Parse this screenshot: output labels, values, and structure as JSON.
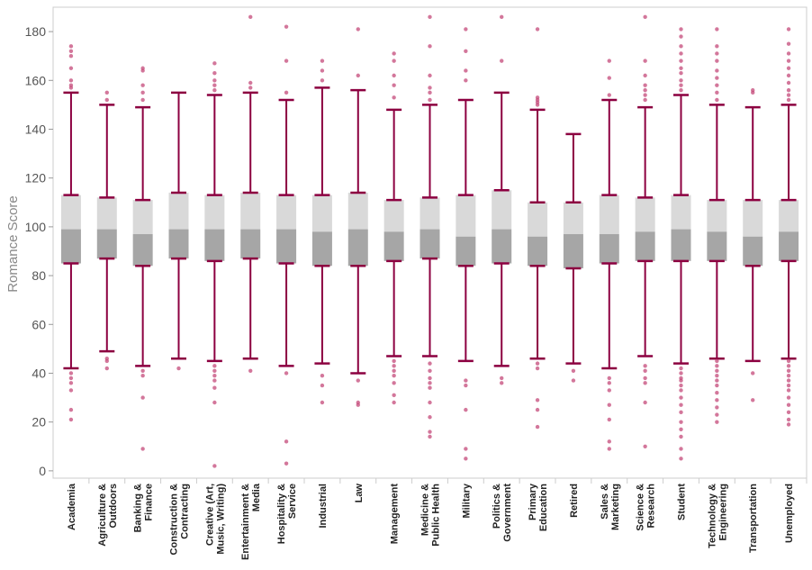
{
  "chart_data": {
    "type": "boxplot",
    "ylabel": "Romance Score",
    "ylim": [
      -3,
      190
    ],
    "yticks": [
      0,
      20,
      40,
      60,
      80,
      100,
      120,
      140,
      160,
      180
    ],
    "grid": false,
    "colors": {
      "whisker": "#8c0040",
      "outlier": "#c44a7a",
      "box_upper": "#d9d9d9",
      "box_lower": "#a6a6a6",
      "frame": "#cccccc"
    },
    "categories": [
      [
        "Academia"
      ],
      [
        "Agriculture &",
        "Outdoors"
      ],
      [
        "Banking &",
        "Finance"
      ],
      [
        "Construction &",
        "Contracting"
      ],
      [
        "Creative (Art,",
        "Music, Writing)"
      ],
      [
        "Entertainment &",
        "Media"
      ],
      [
        "Hospitality &",
        "Service"
      ],
      [
        "Industrial"
      ],
      [
        "Law"
      ],
      [
        "Management"
      ],
      [
        "Medicine &",
        "Public Health"
      ],
      [
        "Military"
      ],
      [
        "Politics &",
        "Government"
      ],
      [
        "Primary",
        "Education"
      ],
      [
        "Retired"
      ],
      [
        "Sales &",
        "Marketing"
      ],
      [
        "Science &",
        "Research"
      ],
      [
        "Student"
      ],
      [
        "Technology &",
        "Engineering"
      ],
      [
        "Transportation"
      ],
      [
        "Unemployed"
      ]
    ],
    "boxes": [
      {
        "lw": 42,
        "q1": 85,
        "med": 99,
        "q3": 113,
        "uw": 155,
        "outliers": [
          21,
          25,
          33,
          36,
          38,
          40,
          157,
          158,
          160,
          165,
          170,
          172,
          174
        ]
      },
      {
        "lw": 49,
        "q1": 87,
        "med": 99,
        "q3": 112,
        "uw": 150,
        "outliers": [
          42,
          45,
          46,
          152,
          155
        ]
      },
      {
        "lw": 43,
        "q1": 84,
        "med": 97,
        "q3": 111,
        "uw": 149,
        "outliers": [
          9,
          30,
          39,
          41,
          152,
          155,
          158,
          164,
          165
        ]
      },
      {
        "lw": 46,
        "q1": 87,
        "med": 99,
        "q3": 114,
        "uw": 155,
        "outliers": [
          42
        ]
      },
      {
        "lw": 45,
        "q1": 86,
        "med": 99,
        "q3": 113,
        "uw": 154,
        "outliers": [
          2,
          28,
          34,
          37,
          39,
          41,
          43,
          156,
          158,
          160,
          163,
          167
        ]
      },
      {
        "lw": 46,
        "q1": 87,
        "med": 99,
        "q3": 114,
        "uw": 155,
        "outliers": [
          41,
          157,
          159,
          186
        ]
      },
      {
        "lw": 43,
        "q1": 85,
        "med": 99,
        "q3": 113,
        "uw": 152,
        "outliers": [
          3,
          12,
          40,
          155,
          168,
          182
        ]
      },
      {
        "lw": 44,
        "q1": 84,
        "med": 98,
        "q3": 113,
        "uw": 157,
        "outliers": [
          28,
          35,
          39,
          160,
          164,
          168
        ]
      },
      {
        "lw": 40,
        "q1": 84,
        "med": 99,
        "q3": 114,
        "uw": 156,
        "outliers": [
          27,
          28,
          37,
          162,
          181
        ]
      },
      {
        "lw": 47,
        "q1": 86,
        "med": 98,
        "q3": 111,
        "uw": 148,
        "outliers": [
          28,
          31,
          36,
          39,
          41,
          43,
          45,
          153,
          158,
          162,
          168,
          171
        ]
      },
      {
        "lw": 47,
        "q1": 87,
        "med": 99,
        "q3": 112,
        "uw": 150,
        "outliers": [
          14,
          16,
          22,
          28,
          34,
          36,
          38,
          41,
          44,
          152,
          155,
          157,
          162,
          174,
          186
        ]
      },
      {
        "lw": 45,
        "q1": 84,
        "med": 96,
        "q3": 113,
        "uw": 152,
        "outliers": [
          5,
          9,
          25,
          35,
          37,
          160,
          164,
          172,
          181
        ]
      },
      {
        "lw": 43,
        "q1": 85,
        "med": 99,
        "q3": 115,
        "uw": 155,
        "outliers": [
          36,
          38,
          168,
          186
        ]
      },
      {
        "lw": 46,
        "q1": 84,
        "med": 96,
        "q3": 110,
        "uw": 148,
        "outliers": [
          18,
          25,
          29,
          42,
          44,
          150,
          151,
          152,
          153,
          181
        ]
      },
      {
        "lw": 44,
        "q1": 83,
        "med": 97,
        "q3": 110,
        "uw": 138,
        "outliers": [
          37,
          41
        ]
      },
      {
        "lw": 42,
        "q1": 85,
        "med": 97,
        "q3": 113,
        "uw": 152,
        "outliers": [
          9,
          12,
          21,
          27,
          33,
          36,
          38,
          154,
          161,
          168
        ]
      },
      {
        "lw": 47,
        "q1": 86,
        "med": 98,
        "q3": 112,
        "uw": 149,
        "outliers": [
          10,
          28,
          36,
          38,
          41,
          43,
          152,
          154,
          156,
          158,
          162,
          168,
          186
        ]
      },
      {
        "lw": 44,
        "q1": 86,
        "med": 99,
        "q3": 113,
        "uw": 154,
        "outliers": [
          5,
          9,
          14,
          17,
          20,
          24,
          27,
          30,
          33,
          35,
          37,
          38,
          40,
          42,
          156,
          158,
          160,
          163,
          165,
          168,
          171,
          174,
          178,
          181
        ]
      },
      {
        "lw": 46,
        "q1": 86,
        "med": 98,
        "q3": 111,
        "uw": 150,
        "outliers": [
          20,
          23,
          26,
          29,
          32,
          35,
          37,
          39,
          41,
          43,
          45,
          152,
          155,
          158,
          161,
          164,
          168,
          171,
          174,
          181
        ]
      },
      {
        "lw": 45,
        "q1": 84,
        "med": 96,
        "q3": 111,
        "uw": 149,
        "outliers": [
          29,
          40,
          155,
          156
        ]
      },
      {
        "lw": 46,
        "q1": 86,
        "med": 98,
        "q3": 111,
        "uw": 150,
        "outliers": [
          19,
          21,
          24,
          27,
          30,
          33,
          35,
          37,
          39,
          41,
          43,
          45,
          152,
          154,
          156,
          159,
          162,
          165,
          168,
          171,
          175,
          181
        ]
      }
    ]
  }
}
